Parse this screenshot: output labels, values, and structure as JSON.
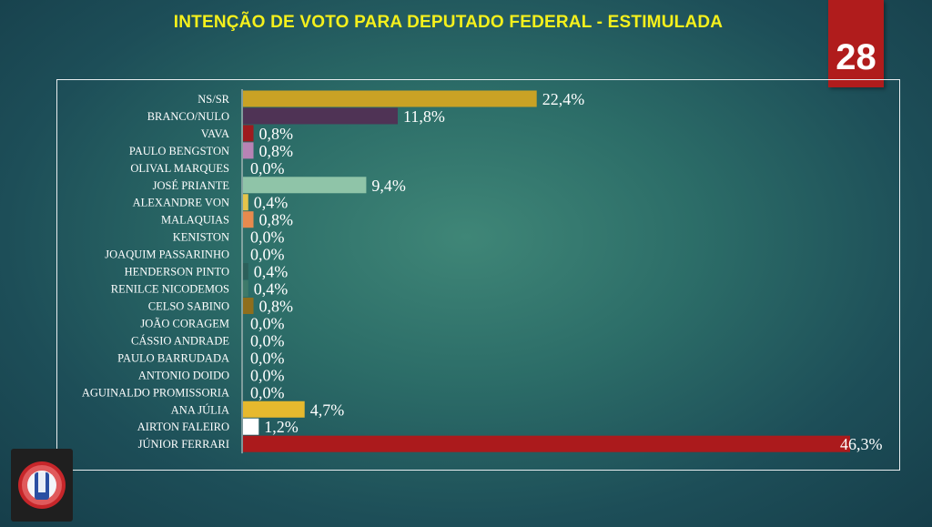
{
  "header": {
    "title": "INTENÇÃO DE VOTO PARA DEPUTADO FEDERAL - ESTIMULADA",
    "page_number": "28"
  },
  "colors": {
    "title": "#f5f01c",
    "badge": "#b01c1c",
    "baseline": "#d9d9d9"
  },
  "chart_data": {
    "type": "bar",
    "orientation": "horizontal",
    "categories": [
      "NS/SR",
      "BRANCO/NULO",
      "VAVA",
      "PAULO BENGSTON",
      "OLIVAL MARQUES",
      "JOSÉ PRIANTE",
      "ALEXANDRE VON",
      "MALAQUIAS",
      "KENISTON",
      "JOAQUIM PASSARINHO",
      "HENDERSON PINTO",
      "RENILCE NICODEMOS",
      "CELSO SABINO",
      "JOÃO CORAGEM",
      "CÁSSIO ANDRADE",
      "PAULO BARRUDADA",
      "ANTONIO DOIDO",
      "AGUINALDO PROMISSORIA",
      "ANA JÚLIA",
      "AIRTON FALEIRO",
      "JÚNIOR FERRARI"
    ],
    "values": [
      22.4,
      11.8,
      0.8,
      0.8,
      0.0,
      9.4,
      0.4,
      0.8,
      0.0,
      0.0,
      0.4,
      0.4,
      0.8,
      0.0,
      0.0,
      0.0,
      0.0,
      0.0,
      4.7,
      1.2,
      46.3
    ],
    "labels": [
      "22,4%",
      "11,8%",
      "0,8%",
      "0,8%",
      "0,0%",
      "9,4%",
      "0,4%",
      "0,8%",
      "0,0%",
      "0,0%",
      "0,4%",
      "0,4%",
      "0,8%",
      "0,0%",
      "0,0%",
      "0,0%",
      "0,0%",
      "0,0%",
      "4,7%",
      "1,2%",
      "46,3%"
    ],
    "colors": [
      "#c9a225",
      "#4f3355",
      "#9e1b1f",
      "#b883b5",
      "#ffffff",
      "#8fc4a8",
      "#e6c44a",
      "#e88a4e",
      "#ffffff",
      "#ffffff",
      "#2b5f5a",
      "#3e7a6a",
      "#8f6e1c",
      "#ffffff",
      "#ffffff",
      "#ffffff",
      "#ffffff",
      "#ffffff",
      "#e6b92e",
      "#ffffff",
      "#ab1a1c"
    ],
    "unit": "%",
    "grid": false,
    "legend": "none"
  }
}
